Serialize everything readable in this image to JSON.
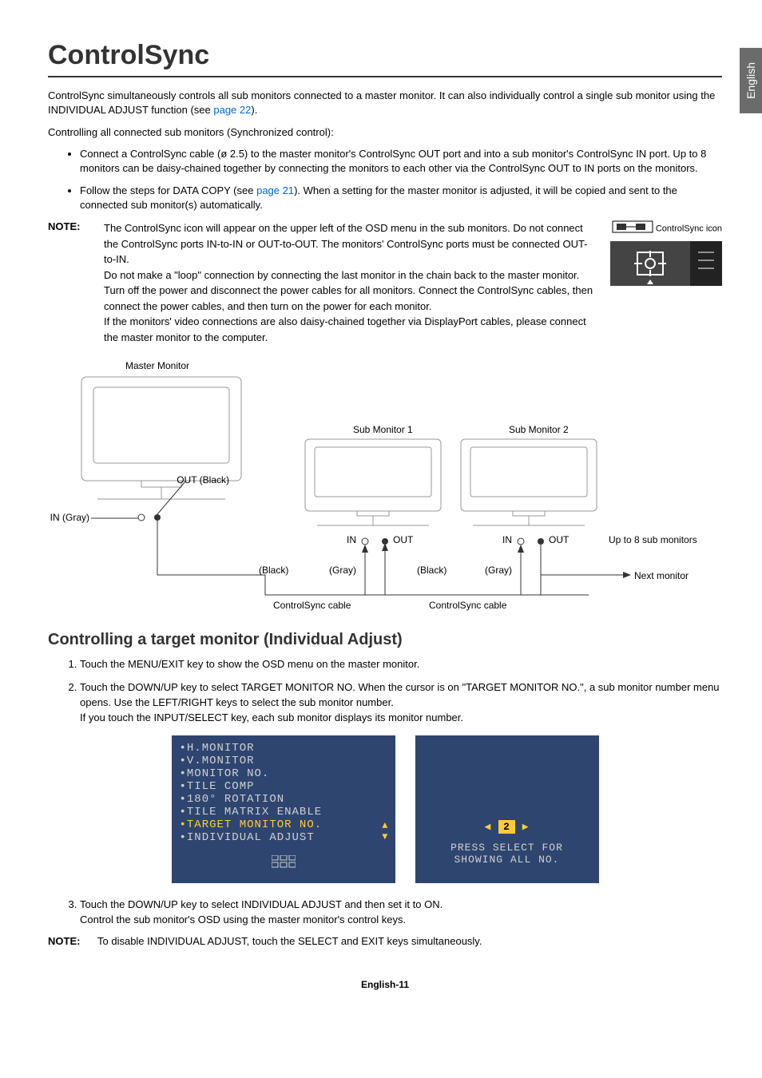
{
  "lang_tab": "English",
  "title": "ControlSync",
  "intro1_a": "ControlSync simultaneously controls all sub monitors connected to a master monitor. It can also individually control a single sub monitor using the INDIVIDUAL ADJUST function (see ",
  "intro1_link": "page 22",
  "intro1_b": ").",
  "intro2": "Controlling all connected sub monitors (Synchronized control):",
  "bullet1": "Connect a ControlSync cable (ø 2.5) to the master monitor's ControlSync OUT port and into a sub monitor's ControlSync IN port. Up to 8 monitors can be daisy-chained together by connecting the monitors to each other via the ControlSync OUT to IN ports on the monitors.",
  "bullet2_a": "Follow the steps for DATA COPY (see ",
  "bullet2_link": "page 21",
  "bullet2_b": "). When a setting for the master monitor is adjusted, it will be copied and sent to the connected sub monitor(s) automatically.",
  "note_label": "NOTE:",
  "note_body": "The ControlSync icon will appear on the upper left of the OSD menu in the sub monitors. Do not connect the ControlSync ports IN-to-IN or OUT-to-OUT. The monitors' ControlSync ports must be connected OUT-to-IN.\nDo not make a \"loop\" connection by connecting the last monitor in the chain back to the master monitor.\nTurn off the power and disconnect the power cables for all monitors. Connect the ControlSync cables, then connect the power cables, and then turn on the power for each monitor.\nIf the monitors' video connections are also daisy-chained together via DisplayPort cables, please connect the master monitor to the computer.",
  "cs_icon_label": "ControlSync icon",
  "diagram": {
    "master": "Master Monitor",
    "sub1": "Sub Monitor 1",
    "sub2": "Sub Monitor 2",
    "out_black": "OUT (Black)",
    "in_gray": "IN (Gray)",
    "in": "IN",
    "out": "OUT",
    "black": "(Black)",
    "gray": "(Gray)",
    "cable": "ControlSync cable",
    "upto": "Up to 8 sub monitors",
    "next": "Next monitor"
  },
  "h2": "Controlling a target monitor (Individual Adjust)",
  "step1": "Touch the MENU/EXIT key to show the OSD menu on the master monitor.",
  "step2": "Touch the DOWN/UP key to select TARGET MONITOR NO. When the cursor is on \"TARGET MONITOR NO.\", a sub monitor number menu opens. Use the LEFT/RIGHT keys to select the sub monitor number.\nIf you touch the INPUT/SELECT key, each sub monitor displays its monitor number.",
  "osd": {
    "items": [
      "H.MONITOR",
      "V.MONITOR",
      "MONITOR NO.",
      "TILE COMP",
      "180° ROTATION",
      "TILE MATRIX ENABLE",
      "TARGET MONITOR NO.",
      "INDIVIDUAL ADJUST"
    ],
    "selected_index": 6,
    "number": "2",
    "press_select": "PRESS SELECT FOR\nSHOWING ALL NO.",
    "panel_bg": "#2e4570",
    "text_color": "#d0d0d0",
    "highlight_color": "#ffcc33"
  },
  "step3_a": "Touch the DOWN/UP key to select INDIVIDUAL ADJUST and then set it to ON.",
  "step3_b": "Control the sub monitor's OSD using the master monitor's control keys.",
  "note2_label": "NOTE:",
  "note2_body": "To disable INDIVIDUAL ADJUST, touch the SELECT and EXIT keys simultaneously.",
  "footer": "English-11"
}
